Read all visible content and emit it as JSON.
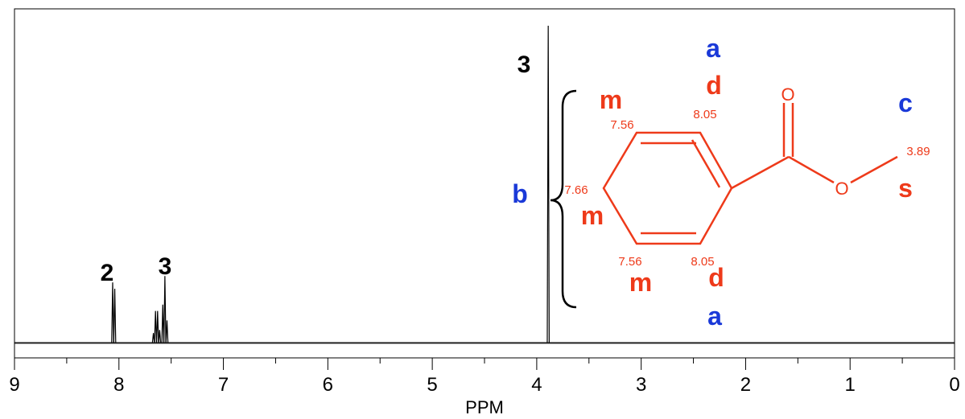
{
  "chart_data": {
    "type": "line",
    "title": "",
    "xlabel": "PPM",
    "ylabel": "",
    "xlim": [
      9,
      0
    ],
    "x_reversed": true,
    "grid": false,
    "x_ticks": [
      "9",
      "8",
      "7",
      "6",
      "5",
      "4",
      "3",
      "2",
      "1",
      "0"
    ],
    "series": [
      {
        "peaks": [
          {
            "ppm": 8.06,
            "height": 0.19
          },
          {
            "ppm": 8.04,
            "height": 0.17
          },
          {
            "ppm": 7.67,
            "height": 0.03
          },
          {
            "ppm": 7.65,
            "height": 0.1
          },
          {
            "ppm": 7.63,
            "height": 0.1
          },
          {
            "ppm": 7.61,
            "height": 0.04
          },
          {
            "ppm": 7.58,
            "height": 0.12
          },
          {
            "ppm": 7.56,
            "height": 0.21
          },
          {
            "ppm": 7.54,
            "height": 0.07
          },
          {
            "ppm": 3.89,
            "height": 1.0
          }
        ]
      }
    ],
    "annotations": {
      "integrations": [
        {
          "text": "2",
          "ppm": 8.05
        },
        {
          "text": "3",
          "ppm": 7.6
        },
        {
          "text": "3",
          "ppm": 3.89
        }
      ],
      "brace_label": "b",
      "labels_a": [
        "a",
        "a"
      ],
      "label_c": "c",
      "multiplicity": {
        "d_top": "d",
        "d_bottom": "d",
        "m_top": "m",
        "m_left": "m",
        "m_bottom": "m",
        "s": "s"
      },
      "shifts": {
        "top_right": "8.05",
        "top_left": "7.56",
        "left": "7.66",
        "bottom_left": "7.56",
        "bottom_right": "8.05",
        "methyl": "3.89"
      },
      "oxygen_carbonyl": "O",
      "oxygen_ester": "O"
    },
    "colors": {
      "spectrum": "#000000",
      "molecule": "#ee3a1a",
      "label_blue": "#1a39d8",
      "text": "#000000"
    }
  }
}
